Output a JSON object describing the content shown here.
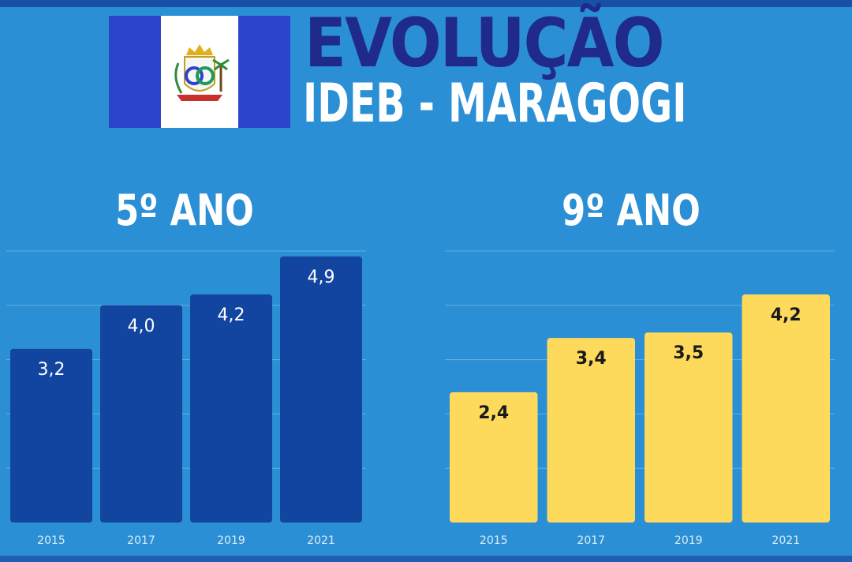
{
  "header": {
    "title_line1": "EVOLUÇÃO",
    "title_line2": "IDEB - MARAGOGI"
  },
  "chart_data": [
    {
      "type": "bar",
      "title": "5º ANO",
      "categories": [
        "2015",
        "2017",
        "2019",
        "2021"
      ],
      "values": [
        3.2,
        4.0,
        4.2,
        4.9
      ],
      "value_labels": [
        "3,2",
        "4,0",
        "4,2",
        "4,9"
      ],
      "ylim": [
        0,
        5
      ],
      "grid": true,
      "colors": {
        "bar": "#1245a0",
        "label": "#ffffff"
      }
    },
    {
      "type": "bar",
      "title": "9º ANO",
      "categories": [
        "2015",
        "2017",
        "2019",
        "2021"
      ],
      "values": [
        2.4,
        3.4,
        3.5,
        4.2
      ],
      "value_labels": [
        "2,4",
        "3,4",
        "3,5",
        "4,2"
      ],
      "ylim": [
        0,
        5
      ],
      "grid": true,
      "colors": {
        "bar": "#fdd95c",
        "label": "#1a1a1a"
      }
    }
  ],
  "colors": {
    "background": "#2a8fd4",
    "title_dark": "#1f2a8a",
    "flag_blue": "#2b44c9"
  }
}
